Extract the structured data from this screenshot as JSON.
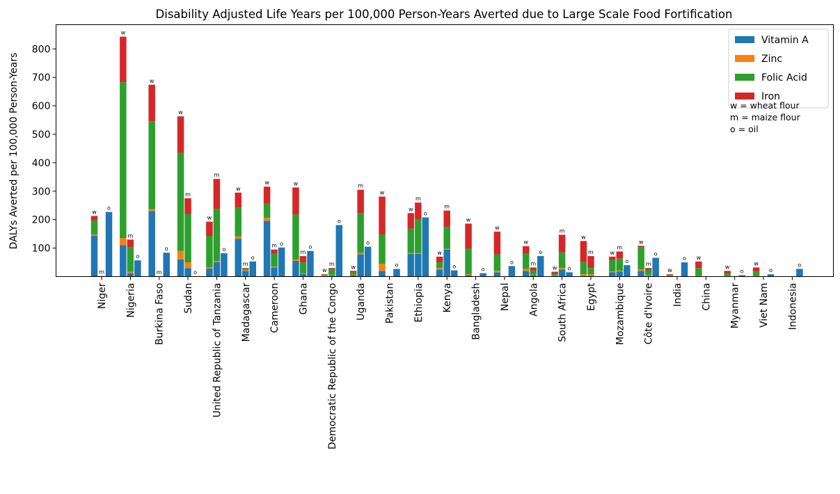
{
  "chart_data": {
    "type": "bar",
    "stacked": true,
    "title": "Disability Adjusted Life Years per 100,000 Person-Years Averted due to Large Scale Food Fortification",
    "xlabel": "",
    "ylabel": "DALYs Averted per 100,000 Person-Years",
    "ylim": [
      0,
      885
    ],
    "yticks": [
      100,
      200,
      300,
      400,
      500,
      600,
      700,
      800
    ],
    "grid": false,
    "legend_placement": "top-right",
    "nutrients": [
      "Vitamin A",
      "Zinc",
      "Folic Acid",
      "Iron"
    ],
    "colors": {
      "Vitamin A": "#1f77b4",
      "Zinc": "#ff7f0e",
      "Folic Acid": "#2ca02c",
      "Iron": "#d62728"
    },
    "vehicle_notes": [
      "w = wheat flour",
      "m = maize flour",
      "o = oil"
    ],
    "categories": [
      "Niger",
      "Nigeria",
      "Burkina Faso",
      "Sudan",
      "United Republic of Tanzania",
      "Madagascar",
      "Cameroon",
      "Ghana",
      "Democratic Republic of the Congo",
      "Uganda",
      "Pakistan",
      "Ethiopia",
      "Kenya",
      "Bangladesh",
      "Nepal",
      "Angola",
      "South Africa",
      "Egypt",
      "Mozambique",
      "Côte d'Ivoire",
      "India",
      "China",
      "Myanmar",
      "Viet Nam",
      "Indonesia"
    ],
    "bars": [
      {
        "country": "Niger",
        "vehicle": "w",
        "values": [
          143,
          5,
          50,
          15
        ]
      },
      {
        "country": "Niger",
        "vehicle": "m",
        "values": [
          1,
          0,
          0,
          1
        ]
      },
      {
        "country": "Niger",
        "vehicle": "o",
        "values": [
          227,
          0,
          0,
          0
        ]
      },
      {
        "country": "Nigeria",
        "vehicle": "w",
        "values": [
          110,
          25,
          548,
          160
        ]
      },
      {
        "country": "Nigeria",
        "vehicle": "m",
        "values": [
          12,
          5,
          86,
          27
        ]
      },
      {
        "country": "Nigeria",
        "vehicle": "o",
        "values": [
          57,
          0,
          0,
          0
        ]
      },
      {
        "country": "Burkina Faso",
        "vehicle": "w",
        "values": [
          230,
          7,
          309,
          128
        ]
      },
      {
        "country": "Burkina Faso",
        "vehicle": "m",
        "values": [
          0,
          0,
          0,
          1
        ]
      },
      {
        "country": "Burkina Faso",
        "vehicle": "o",
        "values": [
          84,
          0,
          0,
          0
        ]
      },
      {
        "country": "Sudan",
        "vehicle": "w",
        "values": [
          60,
          30,
          345,
          128
        ]
      },
      {
        "country": "Sudan",
        "vehicle": "m",
        "values": [
          30,
          20,
          170,
          55
        ]
      },
      {
        "country": "Sudan",
        "vehicle": "o",
        "values": [
          1,
          0,
          0,
          0
        ]
      },
      {
        "country": "United Republic of Tanzania",
        "vehicle": "w",
        "values": [
          28,
          5,
          110,
          50
        ]
      },
      {
        "country": "United Republic of Tanzania",
        "vehicle": "m",
        "values": [
          50,
          5,
          183,
          105
        ]
      },
      {
        "country": "United Republic of Tanzania",
        "vehicle": "o",
        "values": [
          82,
          0,
          0,
          0
        ]
      },
      {
        "country": "Madagascar",
        "vehicle": "w",
        "values": [
          133,
          8,
          102,
          52
        ]
      },
      {
        "country": "Madagascar",
        "vehicle": "m",
        "values": [
          20,
          3,
          5,
          2
        ]
      },
      {
        "country": "Madagascar",
        "vehicle": "o",
        "values": [
          53,
          0,
          0,
          0
        ]
      },
      {
        "country": "Cameroon",
        "vehicle": "w",
        "values": [
          196,
          10,
          50,
          60
        ]
      },
      {
        "country": "Cameroon",
        "vehicle": "m",
        "values": [
          32,
          3,
          45,
          15
        ]
      },
      {
        "country": "Cameroon",
        "vehicle": "o",
        "values": [
          102,
          0,
          0,
          0
        ]
      },
      {
        "country": "Ghana",
        "vehicle": "w",
        "values": [
          55,
          5,
          158,
          95
        ]
      },
      {
        "country": "Ghana",
        "vehicle": "m",
        "values": [
          10,
          2,
          38,
          22
        ]
      },
      {
        "country": "Ghana",
        "vehicle": "o",
        "values": [
          90,
          0,
          0,
          0
        ]
      },
      {
        "country": "Democratic Republic of the Congo",
        "vehicle": "w",
        "values": [
          2,
          1,
          3,
          2
        ]
      },
      {
        "country": "Democratic Republic of the Congo",
        "vehicle": "m",
        "values": [
          4,
          2,
          18,
          6
        ]
      },
      {
        "country": "Democratic Republic of the Congo",
        "vehicle": "o",
        "values": [
          181,
          0,
          0,
          0
        ]
      },
      {
        "country": "Uganda",
        "vehicle": "w",
        "values": [
          5,
          2,
          8,
          5
        ]
      },
      {
        "country": "Uganda",
        "vehicle": "m",
        "values": [
          78,
          5,
          140,
          82
        ]
      },
      {
        "country": "Uganda",
        "vehicle": "o",
        "values": [
          105,
          0,
          0,
          0
        ]
      },
      {
        "country": "Pakistan",
        "vehicle": "w",
        "values": [
          20,
          25,
          103,
          133
        ]
      },
      {
        "country": "Pakistan",
        "vehicle": "o",
        "values": [
          27,
          0,
          0,
          0
        ]
      },
      {
        "country": "Ethiopia",
        "vehicle": "w",
        "values": [
          80,
          3,
          85,
          55
        ]
      },
      {
        "country": "Ethiopia",
        "vehicle": "m",
        "values": [
          80,
          3,
          117,
          60
        ]
      },
      {
        "country": "Ethiopia",
        "vehicle": "o",
        "values": [
          208,
          0,
          0,
          0
        ]
      },
      {
        "country": "Kenya",
        "vehicle": "w",
        "values": [
          25,
          5,
          20,
          20
        ]
      },
      {
        "country": "Kenya",
        "vehicle": "m",
        "values": [
          95,
          3,
          77,
          57
        ]
      },
      {
        "country": "Kenya",
        "vehicle": "o",
        "values": [
          22,
          0,
          0,
          0
        ]
      },
      {
        "country": "Bangladesh",
        "vehicle": "w",
        "values": [
          5,
          3,
          90,
          88
        ]
      },
      {
        "country": "Bangladesh",
        "vehicle": "o",
        "values": [
          12,
          0,
          0,
          0
        ]
      },
      {
        "country": "Nepal",
        "vehicle": "w",
        "values": [
          15,
          5,
          58,
          80
        ]
      },
      {
        "country": "Nepal",
        "vehicle": "o",
        "values": [
          37,
          0,
          0,
          0
        ]
      },
      {
        "country": "Angola",
        "vehicle": "w",
        "values": [
          20,
          7,
          55,
          25
        ]
      },
      {
        "country": "Angola",
        "vehicle": "m",
        "values": [
          5,
          2,
          15,
          10
        ]
      },
      {
        "country": "Angola",
        "vehicle": "o",
        "values": [
          72,
          0,
          0,
          0
        ]
      },
      {
        "country": "South Africa",
        "vehicle": "w",
        "values": [
          3,
          1,
          5,
          8
        ]
      },
      {
        "country": "South Africa",
        "vehicle": "m",
        "values": [
          25,
          5,
          55,
          62
        ]
      },
      {
        "country": "South Africa",
        "vehicle": "o",
        "values": [
          15,
          0,
          0,
          0
        ]
      },
      {
        "country": "Egypt",
        "vehicle": "w",
        "values": [
          3,
          5,
          43,
          74
        ]
      },
      {
        "country": "Egypt",
        "vehicle": "m",
        "values": [
          3,
          5,
          22,
          42
        ]
      },
      {
        "country": "Mozambique",
        "vehicle": "w",
        "values": [
          15,
          3,
          40,
          12
        ]
      },
      {
        "country": "Mozambique",
        "vehicle": "m",
        "values": [
          18,
          3,
          42,
          25
        ]
      },
      {
        "country": "Mozambique",
        "vehicle": "o",
        "values": [
          40,
          0,
          0,
          0
        ]
      },
      {
        "country": "Côte d'Ivoire",
        "vehicle": "w",
        "values": [
          20,
          5,
          78,
          5
        ]
      },
      {
        "country": "Côte d'Ivoire",
        "vehicle": "m",
        "values": [
          3,
          3,
          17,
          7
        ]
      },
      {
        "country": "Côte d'Ivoire",
        "vehicle": "o",
        "values": [
          66,
          0,
          0,
          0
        ]
      },
      {
        "country": "India",
        "vehicle": "w",
        "values": [
          1,
          1,
          3,
          3
        ]
      },
      {
        "country": "India",
        "vehicle": "o",
        "values": [
          50,
          0,
          0,
          0
        ]
      },
      {
        "country": "China",
        "vehicle": "w",
        "values": [
          1,
          1,
          28,
          23
        ]
      },
      {
        "country": "Myanmar",
        "vehicle": "w",
        "values": [
          1,
          1,
          8,
          10
        ]
      },
      {
        "country": "Myanmar",
        "vehicle": "o",
        "values": [
          5,
          0,
          0,
          0
        ]
      },
      {
        "country": "Viet Nam",
        "vehicle": "w",
        "values": [
          1,
          1,
          16,
          14
        ]
      },
      {
        "country": "Viet Nam",
        "vehicle": "o",
        "values": [
          8,
          0,
          0,
          0
        ]
      },
      {
        "country": "Indonesia",
        "vehicle": "o",
        "values": [
          27,
          0,
          0,
          0
        ]
      }
    ]
  }
}
